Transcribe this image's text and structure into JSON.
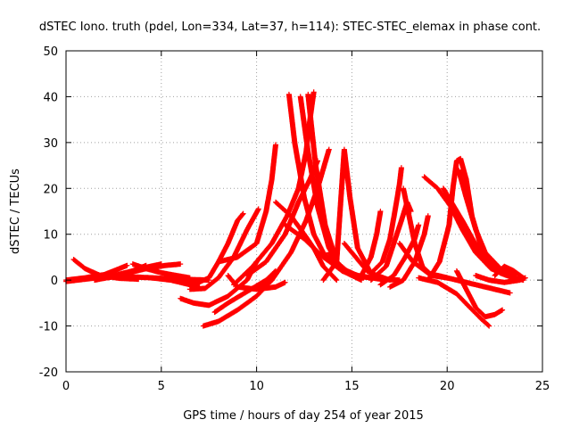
{
  "chart_data": {
    "type": "scatter",
    "title": "dSTEC Iono. truth (pdel, Lon=334, Lat=37, h=114): STEC-STEC_elemax in phase cont.",
    "xlabel": "GPS time / hours of day 254 of year 2015",
    "ylabel": "dSTEC  / TECUs",
    "xlim": [
      0,
      25
    ],
    "ylim": [
      -20,
      50
    ],
    "xticks": [
      0,
      5,
      10,
      15,
      20,
      25
    ],
    "yticks": [
      -20,
      -10,
      0,
      10,
      20,
      30,
      40,
      50
    ],
    "grid": true,
    "marker": "+",
    "color": "#ff0000",
    "tracks": [
      [
        [
          0.0,
          0.0
        ],
        [
          1.0,
          0.5
        ],
        [
          2.0,
          1.2
        ],
        [
          2.8,
          2.5
        ],
        [
          3.2,
          3.2
        ]
      ],
      [
        [
          0.0,
          -0.3
        ],
        [
          1.2,
          0.3
        ],
        [
          2.5,
          1.0
        ],
        [
          3.5,
          2.0
        ],
        [
          4.2,
          3.2
        ]
      ],
      [
        [
          0.4,
          4.5
        ],
        [
          1.0,
          2.5
        ],
        [
          1.8,
          1.0
        ],
        [
          2.8,
          0.4
        ],
        [
          3.8,
          0.2
        ]
      ],
      [
        [
          1.5,
          0.0
        ],
        [
          2.5,
          0.8
        ],
        [
          3.5,
          2.0
        ],
        [
          4.2,
          2.8
        ],
        [
          5.0,
          3.5
        ]
      ],
      [
        [
          2.2,
          0.5
        ],
        [
          3.2,
          1.5
        ],
        [
          4.2,
          2.5
        ],
        [
          5.2,
          3.2
        ],
        [
          6.0,
          3.5
        ]
      ],
      [
        [
          3.5,
          3.5
        ],
        [
          4.2,
          2.5
        ],
        [
          5.0,
          1.6
        ],
        [
          5.8,
          1.0
        ],
        [
          6.5,
          0.5
        ]
      ],
      [
        [
          3.0,
          0.8
        ],
        [
          4.5,
          0.5
        ],
        [
          6.0,
          0.2
        ],
        [
          7.5,
          0.0
        ]
      ],
      [
        [
          4.5,
          0.5
        ],
        [
          5.5,
          0.0
        ],
        [
          6.5,
          -1.0
        ],
        [
          7.0,
          -1.5
        ]
      ],
      [
        [
          6.0,
          -0.2
        ],
        [
          6.8,
          -0.8
        ],
        [
          7.5,
          0.5
        ],
        [
          8.0,
          4.0
        ],
        [
          8.5,
          8.0
        ],
        [
          9.0,
          13.0
        ],
        [
          9.3,
          14.5
        ]
      ],
      [
        [
          6.5,
          -2.0
        ],
        [
          7.3,
          -1.8
        ],
        [
          8.0,
          0.5
        ],
        [
          8.8,
          5.0
        ],
        [
          9.5,
          11.0
        ],
        [
          10.1,
          15.5
        ]
      ],
      [
        [
          6.0,
          -4.0
        ],
        [
          6.7,
          -5.0
        ],
        [
          7.5,
          -5.5
        ],
        [
          8.5,
          -3.5
        ],
        [
          9.5,
          0.0
        ],
        [
          10.0,
          4.0
        ]
      ],
      [
        [
          7.2,
          -10.0
        ],
        [
          8.0,
          -9.0
        ],
        [
          9.0,
          -6.5
        ],
        [
          10.0,
          -3.5
        ],
        [
          10.8,
          0.0
        ]
      ],
      [
        [
          7.8,
          -7.0
        ],
        [
          8.5,
          -5.0
        ],
        [
          9.5,
          -2.5
        ],
        [
          10.5,
          0.0
        ],
        [
          11.0,
          2.0
        ]
      ],
      [
        [
          8.5,
          1.0
        ],
        [
          9.0,
          -1.5
        ],
        [
          10.0,
          -2.0
        ],
        [
          11.0,
          -1.5
        ],
        [
          11.5,
          -0.5
        ]
      ],
      [
        [
          8.0,
          4.0
        ],
        [
          9.0,
          5.0
        ],
        [
          10.0,
          8.0
        ],
        [
          10.5,
          15.0
        ],
        [
          10.8,
          22.0
        ],
        [
          11.0,
          29.5
        ]
      ],
      [
        [
          8.8,
          -1.0
        ],
        [
          9.8,
          3.0
        ],
        [
          10.8,
          8.0
        ],
        [
          11.6,
          14.0
        ],
        [
          12.2,
          20.0
        ],
        [
          12.6,
          28.0
        ],
        [
          12.8,
          35.0
        ],
        [
          13.0,
          41.0
        ]
      ],
      [
        [
          9.5,
          1.0
        ],
        [
          10.5,
          4.0
        ],
        [
          11.5,
          10.0
        ],
        [
          12.2,
          17.0
        ],
        [
          12.8,
          22.0
        ],
        [
          13.2,
          26.0
        ]
      ],
      [
        [
          10.0,
          -2.0
        ],
        [
          10.8,
          0.0
        ],
        [
          11.8,
          6.0
        ],
        [
          12.6,
          13.0
        ],
        [
          13.2,
          20.0
        ],
        [
          13.8,
          28.5
        ]
      ],
      [
        [
          11.7,
          40.5
        ],
        [
          12.0,
          30.0
        ],
        [
          12.5,
          18.0
        ],
        [
          13.0,
          10.0
        ],
        [
          13.5,
          6.0
        ],
        [
          14.5,
          2.0
        ]
      ],
      [
        [
          12.3,
          40.0
        ],
        [
          12.7,
          28.0
        ],
        [
          13.2,
          16.0
        ],
        [
          13.8,
          7.0
        ],
        [
          14.5,
          2.0
        ],
        [
          15.5,
          0.0
        ]
      ],
      [
        [
          12.7,
          40.5
        ],
        [
          13.1,
          25.0
        ],
        [
          13.6,
          12.0
        ],
        [
          14.2,
          4.0
        ],
        [
          15.0,
          1.0
        ],
        [
          16.0,
          0.5
        ]
      ],
      [
        [
          11.0,
          17.0
        ],
        [
          11.8,
          14.0
        ],
        [
          12.5,
          10.0
        ],
        [
          13.0,
          7.0
        ],
        [
          13.5,
          3.0
        ],
        [
          14.2,
          0.0
        ]
      ],
      [
        [
          11.5,
          12.0
        ],
        [
          12.5,
          9.0
        ],
        [
          13.5,
          5.0
        ],
        [
          14.5,
          2.0
        ],
        [
          15.5,
          0.8
        ]
      ],
      [
        [
          13.5,
          0.0
        ],
        [
          14.2,
          4.0
        ],
        [
          14.6,
          28.5
        ],
        [
          14.9,
          18.0
        ],
        [
          15.3,
          7.0
        ],
        [
          16.0,
          1.5
        ],
        [
          17.0,
          0.0
        ]
      ],
      [
        [
          13.8,
          6.0
        ],
        [
          14.5,
          2.5
        ],
        [
          15.3,
          1.0
        ],
        [
          16.5,
          0.2
        ],
        [
          17.5,
          0.0
        ]
      ],
      [
        [
          14.6,
          8.0
        ],
        [
          15.2,
          5.0
        ],
        [
          15.8,
          2.0
        ],
        [
          16.5,
          0.5
        ]
      ],
      [
        [
          15.5,
          1.0
        ],
        [
          16.0,
          5.0
        ],
        [
          16.3,
          10.0
        ],
        [
          16.5,
          15.0
        ]
      ],
      [
        [
          16.0,
          1.5
        ],
        [
          16.6,
          4.0
        ],
        [
          17.0,
          9.0
        ],
        [
          17.3,
          16.0
        ],
        [
          17.5,
          21.0
        ],
        [
          17.6,
          24.5
        ]
      ],
      [
        [
          16.0,
          0.0
        ],
        [
          16.8,
          3.0
        ],
        [
          17.2,
          8.0
        ],
        [
          17.6,
          13.0
        ],
        [
          17.9,
          17.0
        ],
        [
          18.1,
          15.0
        ]
      ],
      [
        [
          16.5,
          -1.0
        ],
        [
          17.2,
          1.0
        ],
        [
          17.8,
          5.0
        ],
        [
          18.3,
          9.0
        ],
        [
          18.5,
          12.0
        ]
      ],
      [
        [
          17.0,
          -1.5
        ],
        [
          17.7,
          0.0
        ],
        [
          18.3,
          4.0
        ],
        [
          18.8,
          10.0
        ],
        [
          19.0,
          14.0
        ]
      ],
      [
        [
          17.7,
          20.0
        ],
        [
          18.0,
          14.0
        ],
        [
          18.3,
          8.0
        ],
        [
          18.7,
          3.0
        ],
        [
          19.2,
          1.0
        ],
        [
          20.0,
          0.5
        ]
      ],
      [
        [
          17.5,
          8.0
        ],
        [
          18.2,
          4.0
        ],
        [
          19.0,
          1.5
        ],
        [
          20.0,
          0.5
        ]
      ],
      [
        [
          19.0,
          0.0
        ],
        [
          19.6,
          4.0
        ],
        [
          20.1,
          12.0
        ],
        [
          20.3,
          20.0
        ],
        [
          20.5,
          26.0
        ],
        [
          20.7,
          26.5
        ],
        [
          21.0,
          22.0
        ],
        [
          21.3,
          14.0
        ],
        [
          21.8,
          7.0
        ],
        [
          22.5,
          3.0
        ],
        [
          23.5,
          1.0
        ]
      ],
      [
        [
          18.8,
          22.5
        ],
        [
          19.5,
          20.0
        ],
        [
          20.2,
          16.0
        ],
        [
          20.8,
          11.0
        ],
        [
          21.5,
          6.0
        ],
        [
          22.3,
          2.5
        ],
        [
          23.5,
          0.5
        ],
        [
          24.0,
          0.0
        ]
      ],
      [
        [
          19.8,
          20.0
        ],
        [
          20.5,
          15.0
        ],
        [
          21.2,
          9.0
        ],
        [
          22.0,
          4.0
        ],
        [
          22.8,
          1.5
        ],
        [
          23.8,
          0.0
        ]
      ],
      [
        [
          20.0,
          18.5
        ],
        [
          20.8,
          13.0
        ],
        [
          21.6,
          7.0
        ],
        [
          22.4,
          3.0
        ],
        [
          23.2,
          1.0
        ]
      ],
      [
        [
          20.6,
          24.0
        ],
        [
          21.0,
          18.0
        ],
        [
          21.5,
          11.0
        ],
        [
          22.0,
          6.0
        ],
        [
          22.8,
          2.5
        ],
        [
          23.6,
          1.5
        ]
      ],
      [
        [
          18.5,
          0.5
        ],
        [
          19.5,
          -0.5
        ],
        [
          20.5,
          -3.0
        ],
        [
          21.2,
          -6.0
        ],
        [
          21.8,
          -8.5
        ],
        [
          22.2,
          -10.0
        ]
      ],
      [
        [
          20.5,
          2.0
        ],
        [
          21.0,
          -2.0
        ],
        [
          21.5,
          -6.0
        ],
        [
          22.0,
          -8.0
        ],
        [
          22.5,
          -7.5
        ],
        [
          22.9,
          -6.5
        ]
      ],
      [
        [
          19.5,
          1.0
        ],
        [
          20.5,
          0.0
        ],
        [
          21.5,
          -1.0
        ],
        [
          22.5,
          -2.0
        ],
        [
          23.3,
          -2.8
        ]
      ],
      [
        [
          21.5,
          1.0
        ],
        [
          22.2,
          0.0
        ],
        [
          23.0,
          -0.5
        ],
        [
          23.8,
          0.0
        ],
        [
          24.1,
          0.5
        ]
      ],
      [
        [
          22.5,
          1.0
        ],
        [
          23.0,
          3.0
        ],
        [
          23.5,
          2.0
        ],
        [
          24.0,
          0.5
        ]
      ]
    ]
  }
}
